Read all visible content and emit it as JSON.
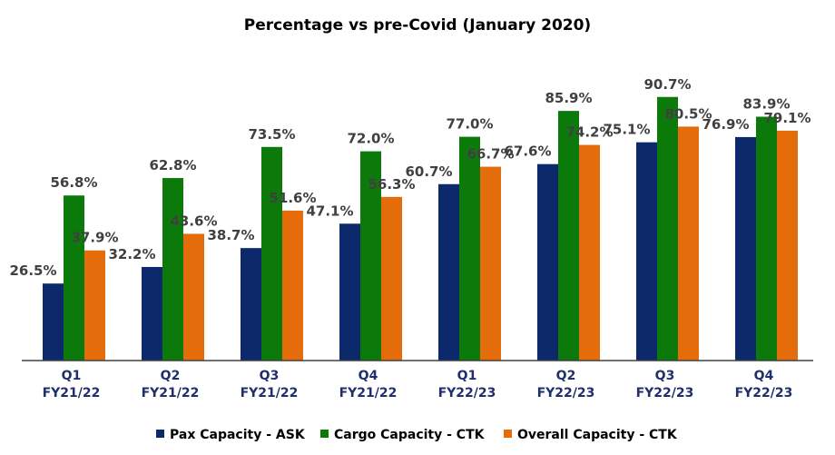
{
  "chart_data": {
    "type": "bar",
    "title": "Percentage vs pre-Covid (January 2020)",
    "xlabel": "",
    "ylabel": "",
    "ylim": [
      0,
      100
    ],
    "grid": false,
    "legend_position": "bottom",
    "categories": [
      [
        "Q1",
        "FY21/22"
      ],
      [
        "Q2",
        "FY21/22"
      ],
      [
        "Q3",
        "FY21/22"
      ],
      [
        "Q4",
        "FY21/22"
      ],
      [
        "Q1",
        "FY22/23"
      ],
      [
        "Q2",
        "FY22/23"
      ],
      [
        "Q3",
        "FY22/23"
      ],
      [
        "Q4",
        "FY22/23"
      ]
    ],
    "series": [
      {
        "name": "Pax Capacity - ASK",
        "color": "#0c2a6b",
        "values": [
          26.5,
          32.2,
          38.7,
          47.1,
          60.7,
          67.6,
          75.1,
          76.9
        ],
        "labels": [
          "26.5%",
          "32.2%",
          "38.7%",
          "47.1%",
          "60.7%",
          "67.6%",
          "75.1%",
          "76.9%"
        ]
      },
      {
        "name": "Cargo Capacity - CTK",
        "color": "#0b7a0b",
        "values": [
          56.8,
          62.8,
          73.5,
          72.0,
          77.0,
          85.9,
          90.7,
          83.9
        ],
        "labels": [
          "56.8%",
          "62.8%",
          "73.5%",
          "72.0%",
          "77.0%",
          "85.9%",
          "90.7%",
          "83.9%"
        ]
      },
      {
        "name": "Overall Capacity - CTK",
        "color": "#e46c0a",
        "values": [
          37.9,
          43.6,
          51.6,
          56.3,
          66.7,
          74.2,
          80.5,
          79.1
        ],
        "labels": [
          "37.9%",
          "43.6%",
          "51.6%",
          "56.3%",
          "66.7%",
          "74.2%",
          "80.5%",
          "79.1%"
        ]
      }
    ]
  }
}
